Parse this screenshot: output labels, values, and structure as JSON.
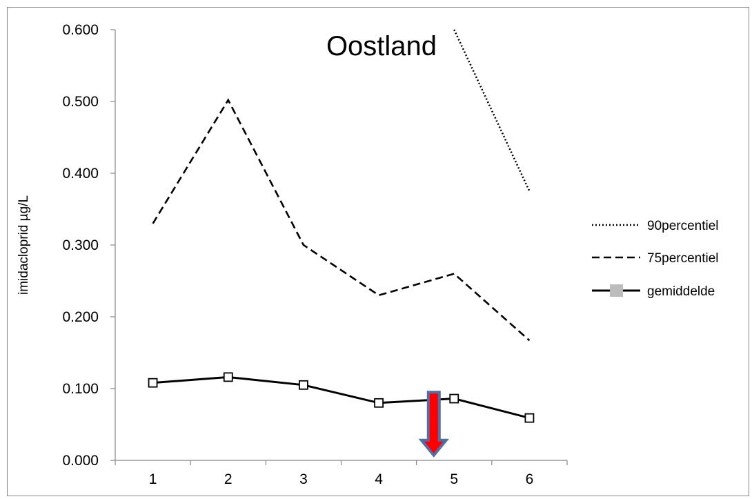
{
  "chart_data": {
    "type": "line",
    "title": "Oostland",
    "xlabel": "",
    "ylabel": "imidacloprid µg/L",
    "categories": [
      "1",
      "2",
      "3",
      "4",
      "5",
      "6"
    ],
    "ylim": [
      0,
      0.6
    ],
    "y_ticks": [
      "0.000",
      "0.100",
      "0.200",
      "0.300",
      "0.400",
      "0.500",
      "0.600"
    ],
    "grid": false,
    "legend_position": "right",
    "series": [
      {
        "name": "90percentiel",
        "style": "dotted",
        "values": [
          null,
          null,
          null,
          null,
          0.6,
          0.375
        ]
      },
      {
        "name": "75percentiel",
        "style": "dashed",
        "values": [
          0.33,
          0.502,
          0.3,
          0.23,
          0.26,
          0.167
        ]
      },
      {
        "name": "gemiddelde",
        "style": "solid",
        "marker": "square",
        "values": [
          0.108,
          0.116,
          0.105,
          0.08,
          0.086,
          0.059
        ]
      }
    ],
    "annotations": [
      {
        "type": "down-arrow",
        "x_position": 4.73,
        "y_top": 0.095,
        "y_bottom": 0.007,
        "fill_color": "#ff0000",
        "outline_color": "#4f6fa8"
      }
    ],
    "colors": {
      "series": "#000000",
      "axis": "#868686",
      "frame": "#868686"
    }
  }
}
